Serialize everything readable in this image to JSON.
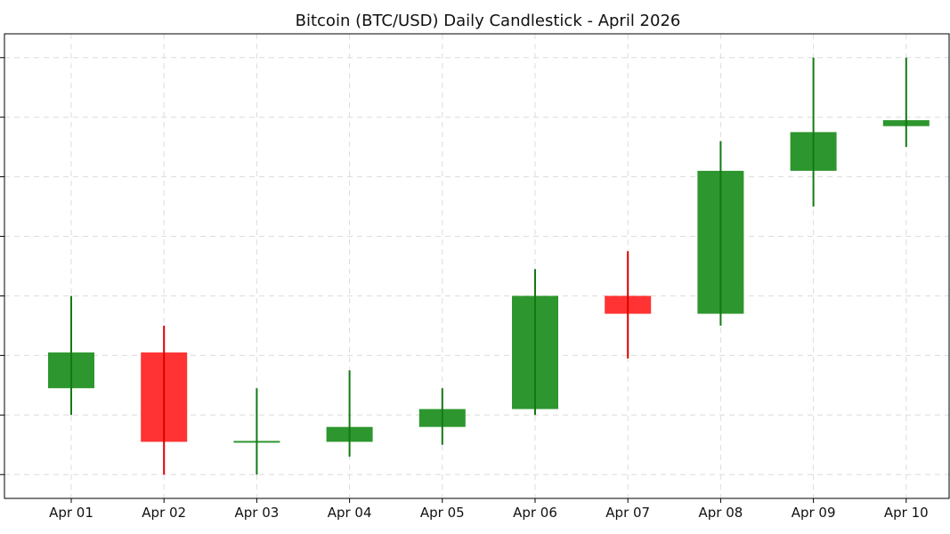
{
  "chart_data": {
    "type": "candlestick",
    "title": "Bitcoin (BTC/USD) Daily Candlestick - April 2026",
    "xlabel": "",
    "ylabel": "",
    "grid": true,
    "y_tick_labels_visible": false,
    "ylim": [
      0,
      156
    ],
    "y_ticks": [
      8,
      28,
      48,
      68,
      88,
      108,
      128,
      148
    ],
    "colors": {
      "up": "#2e962e",
      "up_wick": "#137a13",
      "down": "#ff3333",
      "down_wick": "#e00000"
    },
    "categories": [
      "Apr 01",
      "Apr 02",
      "Apr 03",
      "Apr 04",
      "Apr 05",
      "Apr 06",
      "Apr 07",
      "Apr 08",
      "Apr 09",
      "Apr 10"
    ],
    "open": [
      37,
      49,
      19,
      19,
      24,
      30,
      68,
      62,
      110,
      125
    ],
    "close": [
      49,
      19,
      19,
      24,
      30,
      68,
      62,
      110,
      123,
      127
    ],
    "high": [
      68,
      58,
      37,
      43,
      37,
      77,
      83,
      120,
      148,
      148
    ],
    "low": [
      28,
      8,
      8,
      14,
      18,
      28,
      47,
      58,
      98,
      118
    ]
  }
}
